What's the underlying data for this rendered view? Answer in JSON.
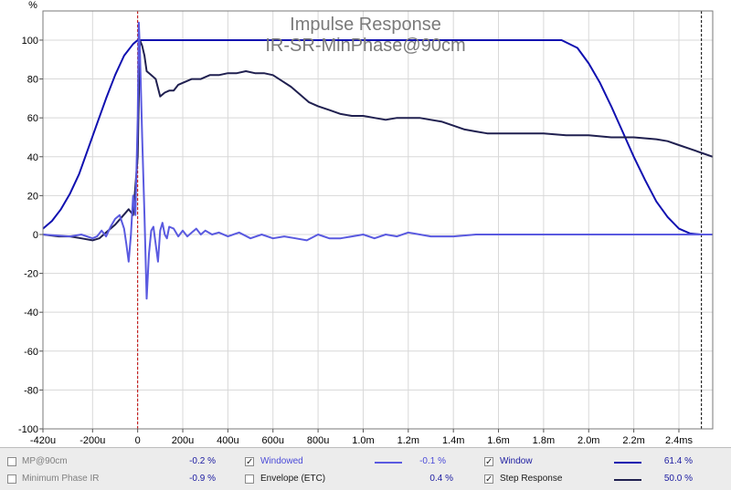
{
  "chart_data": {
    "type": "line",
    "title": "Impulse Response",
    "subtitle": "IR-SR-MinPhase@90cm",
    "ylabel": "%",
    "xlabel": "",
    "xlim": [
      -0.42,
      2.55
    ],
    "ylim": [
      -100,
      115
    ],
    "x_unit": "ms",
    "grid": true,
    "x_ticks": [
      {
        "v": -0.42,
        "label": "-420u"
      },
      {
        "v": -0.2,
        "label": "-200u"
      },
      {
        "v": 0,
        "label": "0"
      },
      {
        "v": 0.2,
        "label": "200u"
      },
      {
        "v": 0.4,
        "label": "400u"
      },
      {
        "v": 0.6,
        "label": "600u"
      },
      {
        "v": 0.8,
        "label": "800u"
      },
      {
        "v": 1.0,
        "label": "1.0m"
      },
      {
        "v": 1.2,
        "label": "1.2m"
      },
      {
        "v": 1.4,
        "label": "1.4m"
      },
      {
        "v": 1.6,
        "label": "1.6m"
      },
      {
        "v": 1.8,
        "label": "1.8m"
      },
      {
        "v": 2.0,
        "label": "2.0m"
      },
      {
        "v": 2.2,
        "label": "2.2m"
      },
      {
        "v": 2.4,
        "label": "2.4ms"
      }
    ],
    "y_ticks": [
      {
        "v": 100,
        "label": "100"
      },
      {
        "v": 80,
        "label": "80"
      },
      {
        "v": 60,
        "label": "60"
      },
      {
        "v": 40,
        "label": "40"
      },
      {
        "v": 20,
        "label": "20"
      },
      {
        "v": 0,
        "label": "0"
      },
      {
        "v": -20,
        "label": "-20"
      },
      {
        "v": -40,
        "label": "-40"
      },
      {
        "v": -60,
        "label": "-60"
      },
      {
        "v": -80,
        "label": "-80"
      },
      {
        "v": -100,
        "label": "-100"
      }
    ],
    "markers": [
      {
        "x": 0.0,
        "color": "#c00000",
        "style": "dashed"
      },
      {
        "x": 2.5,
        "color": "#000000",
        "style": "dashed"
      }
    ],
    "series": [
      {
        "name": "Window",
        "color": "#1010b0",
        "x": [
          -0.42,
          -0.38,
          -0.34,
          -0.3,
          -0.26,
          -0.22,
          -0.18,
          -0.14,
          -0.1,
          -0.06,
          -0.02,
          0.0,
          0.1,
          0.5,
          1.0,
          1.5,
          1.88,
          1.95,
          2.0,
          2.05,
          2.1,
          2.15,
          2.2,
          2.25,
          2.3,
          2.35,
          2.4,
          2.45,
          2.5,
          2.55
        ],
        "y": [
          3,
          7,
          13,
          21,
          31,
          44,
          57,
          70,
          82,
          92,
          98,
          100,
          100,
          100,
          100,
          100,
          100,
          96,
          88,
          78,
          66,
          53,
          40,
          28,
          17,
          9,
          3,
          0.5,
          0,
          0
        ]
      },
      {
        "name": "Step Response",
        "color": "#202050",
        "x": [
          -0.42,
          -0.35,
          -0.3,
          -0.25,
          -0.2,
          -0.17,
          -0.14,
          -0.1,
          -0.07,
          -0.04,
          -0.02,
          0.0,
          0.01,
          0.02,
          0.03,
          0.04,
          0.06,
          0.08,
          0.1,
          0.12,
          0.14,
          0.16,
          0.18,
          0.2,
          0.24,
          0.28,
          0.32,
          0.36,
          0.4,
          0.44,
          0.48,
          0.52,
          0.56,
          0.6,
          0.64,
          0.68,
          0.72,
          0.76,
          0.8,
          0.85,
          0.9,
          0.95,
          1.0,
          1.05,
          1.1,
          1.15,
          1.2,
          1.25,
          1.3,
          1.35,
          1.4,
          1.45,
          1.5,
          1.55,
          1.6,
          1.7,
          1.8,
          1.9,
          2.0,
          2.1,
          2.2,
          2.3,
          2.35,
          2.4,
          2.45,
          2.5,
          2.55
        ],
        "y": [
          0,
          -1,
          -1,
          -2,
          -3,
          -2,
          1,
          5,
          9,
          13,
          10,
          40,
          100,
          97,
          92,
          84,
          82,
          80,
          71,
          73,
          74,
          74,
          77,
          78,
          80,
          80,
          82,
          82,
          83,
          83,
          84,
          83,
          83,
          82,
          79,
          76,
          72,
          68,
          66,
          64,
          62,
          61,
          61,
          60,
          59,
          60,
          60,
          60,
          59,
          58,
          56,
          54,
          53,
          52,
          52,
          52,
          52,
          51,
          51,
          50,
          50,
          49,
          48,
          46,
          44,
          42,
          40
        ]
      },
      {
        "name": "Windowed",
        "color": "#5a5ae0",
        "x": [
          -0.42,
          -0.3,
          -0.25,
          -0.2,
          -0.18,
          -0.16,
          -0.14,
          -0.12,
          -0.1,
          -0.08,
          -0.06,
          -0.05,
          -0.04,
          -0.03,
          -0.02,
          -0.01,
          0.0,
          0.005,
          0.01,
          0.02,
          0.03,
          0.04,
          0.05,
          0.06,
          0.07,
          0.08,
          0.09,
          0.1,
          0.11,
          0.12,
          0.13,
          0.14,
          0.16,
          0.18,
          0.2,
          0.22,
          0.24,
          0.26,
          0.28,
          0.3,
          0.33,
          0.36,
          0.4,
          0.45,
          0.5,
          0.55,
          0.6,
          0.65,
          0.7,
          0.75,
          0.8,
          0.85,
          0.9,
          0.95,
          1.0,
          1.05,
          1.1,
          1.15,
          1.2,
          1.3,
          1.4,
          1.5,
          1.6,
          1.7,
          1.8,
          2.0,
          2.2,
          2.5,
          2.55
        ],
        "y": [
          0,
          -1,
          0,
          -2,
          -1,
          2,
          -1,
          4,
          8,
          10,
          3,
          -5,
          -14,
          0,
          20,
          10,
          60,
          109,
          95,
          50,
          10,
          -33,
          -10,
          2,
          4,
          -5,
          -14,
          2,
          6,
          0,
          -2,
          4,
          3,
          -1,
          2,
          -1,
          1,
          3,
          0,
          2,
          0,
          1,
          -1,
          1,
          -2,
          0,
          -2,
          -1,
          -2,
          -3,
          0,
          -2,
          -2,
          -1,
          0,
          -2,
          0,
          -1,
          1,
          -1,
          -1,
          0,
          0,
          0,
          0,
          0,
          0,
          0,
          0
        ]
      }
    ]
  },
  "legend": {
    "items": [
      {
        "label": "MP@90cm",
        "value": "-0.2 %",
        "checked": false
      },
      {
        "label": "Minimum Phase IR",
        "value": "-0.9 %",
        "checked": false
      },
      {
        "label": "Windowed",
        "value": "-0.1 %",
        "checked": true
      },
      {
        "label": "Envelope (ETC)",
        "value": "0.4 %",
        "checked": false
      },
      {
        "label": "Window",
        "value": "61.4 %",
        "checked": true
      },
      {
        "label": "Step Response",
        "value": "50.0 %",
        "checked": true
      }
    ]
  }
}
